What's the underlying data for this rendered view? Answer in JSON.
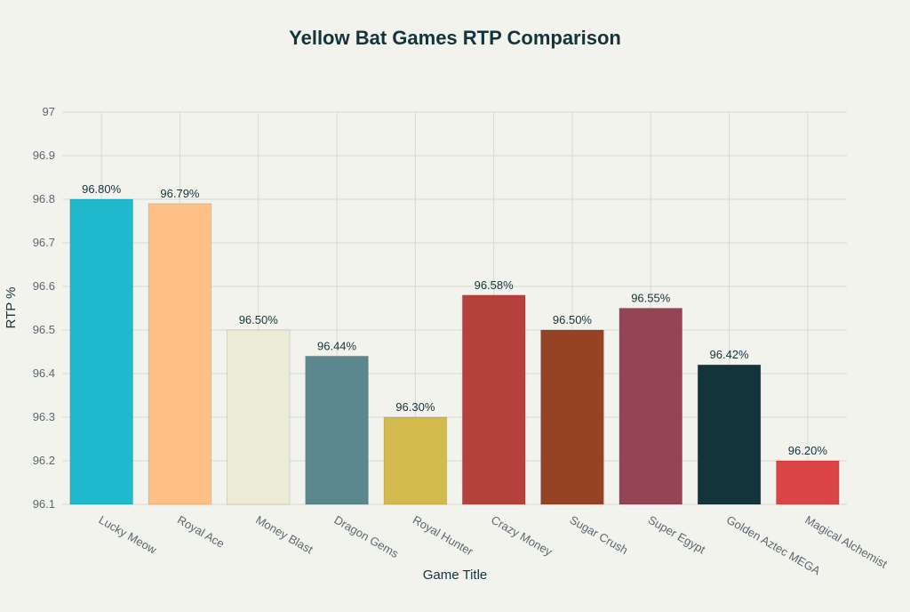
{
  "chart_data": {
    "type": "bar",
    "title": "Yellow Bat Games RTP Comparison",
    "xlabel": "Game Title",
    "ylabel": "RTP %",
    "ylim": [
      96.1,
      97
    ],
    "yticks": [
      "96.1",
      "96.2",
      "96.3",
      "96.4",
      "96.5",
      "96.6",
      "96.7",
      "96.8",
      "96.9",
      "97"
    ],
    "grid": true,
    "categories": [
      "Lucky Meow",
      "Royal Ace",
      "Money Blast",
      "Dragon Gems",
      "Royal Hunter",
      "Crazy Money",
      "Sugar Crush",
      "Super Egypt",
      "Golden Aztec MEGA",
      "Magical Alchemist"
    ],
    "values": [
      96.8,
      96.79,
      96.5,
      96.44,
      96.3,
      96.58,
      96.5,
      96.55,
      96.42,
      96.2
    ],
    "data_labels": [
      "96.80%",
      "96.79%",
      "96.50%",
      "96.44%",
      "96.30%",
      "96.58%",
      "96.50%",
      "96.55%",
      "96.42%",
      "96.20%"
    ],
    "colors": [
      "#1fb8cd",
      "#ffc185",
      "#eceBd5",
      "#5d878f",
      "#d2ba4c",
      "#b4413c",
      "#964325",
      "#944454",
      "#13343b",
      "#db4545"
    ]
  }
}
